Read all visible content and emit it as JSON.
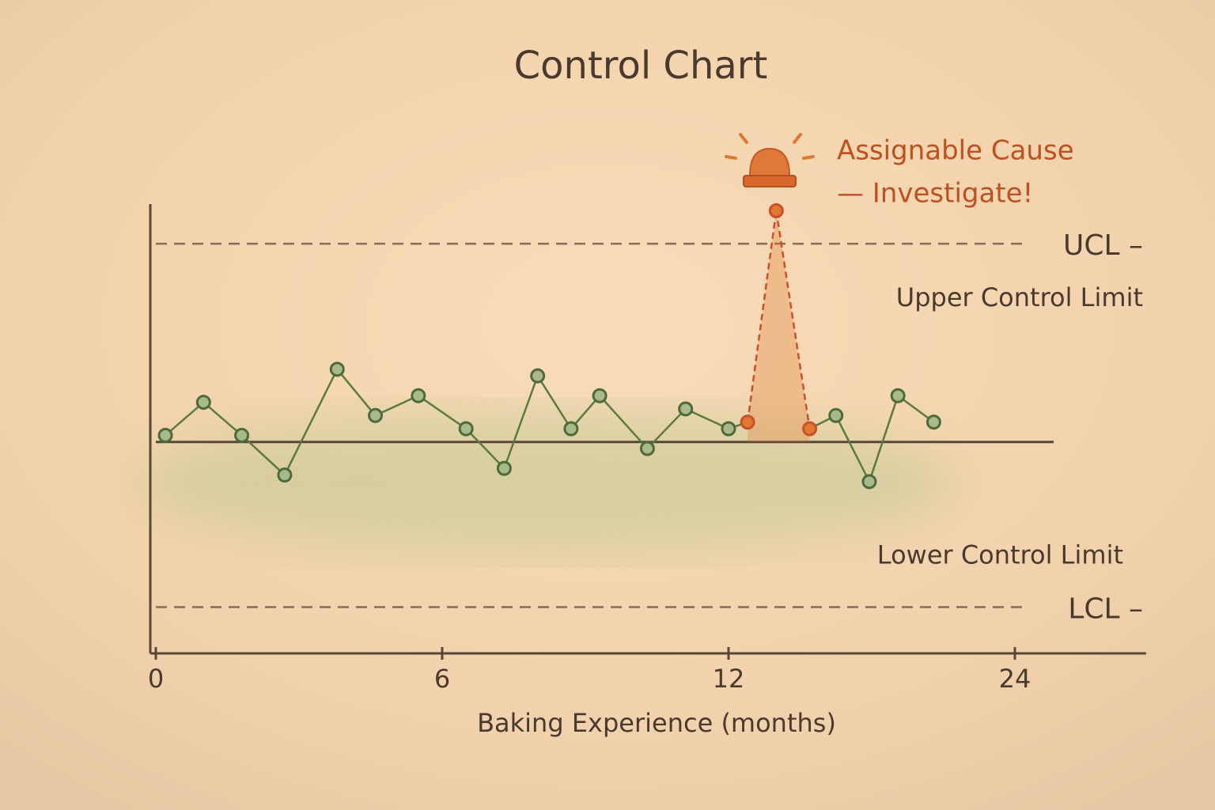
{
  "chart_data": {
    "type": "line",
    "title": "Control Chart",
    "x_label": "Baking Experience (months)",
    "annotation": [
      "Assignable Cause",
      "— Investigate!"
    ],
    "x": [
      0.2,
      1.0,
      1.8,
      2.7,
      3.8,
      4.6,
      5.5,
      6.5,
      7.3,
      8.0,
      8.7,
      9.3,
      10.3,
      11.1,
      12.0,
      12.8,
      14.0,
      15.4,
      16.5,
      17.9,
      19.1,
      20.6
    ],
    "series": [
      {
        "color": "#5a7a40",
        "values": [
          0.1,
          0.6,
          0.1,
          -0.5,
          1.1,
          0.4,
          0.7,
          0.2,
          -0.4,
          1.0,
          0.2,
          0.7,
          -0.1,
          0.5,
          0.2,
          0.3,
          3.5,
          0.2,
          0.4,
          -0.6,
          0.7,
          0.3
        ]
      }
    ],
    "highlight": {
      "color": "#e0782f",
      "indices": [
        15,
        16,
        17
      ]
    },
    "center_line": 0,
    "limits": [
      {
        "label": "UCL –",
        "description": "Upper Control Limit",
        "value": 3
      },
      {
        "label": "LCL –",
        "description": "Lower Control Limit",
        "value": -2.5
      }
    ],
    "xlim": [
      0,
      29
    ],
    "xticks": [
      0,
      6,
      12,
      24
    ],
    "ylim": [
      -3.2,
      3.6
    ]
  }
}
